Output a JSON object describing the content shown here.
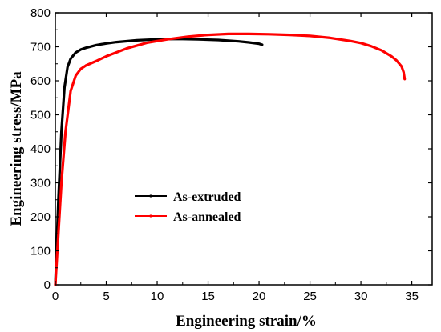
{
  "chart_data": {
    "type": "line",
    "title": "",
    "xlabel": "Engineering strain/%",
    "ylabel": "Engineering stress/MPa",
    "xlim": [
      0,
      37
    ],
    "ylim": [
      0,
      800
    ],
    "xticks": [
      0,
      5,
      10,
      15,
      20,
      25,
      30,
      35
    ],
    "yticks": [
      0,
      100,
      200,
      300,
      400,
      500,
      600,
      700,
      800
    ],
    "grid": false,
    "legend": {
      "position": "center-left"
    },
    "series": [
      {
        "name": "As-extruded",
        "color": "#000000",
        "x": [
          0,
          0.3,
          0.6,
          0.9,
          1.2,
          1.5,
          2.0,
          2.5,
          3.0,
          4.0,
          5.0,
          6.0,
          8.0,
          10.0,
          12.0,
          14.0,
          16.0,
          18.0,
          19.0,
          20.0,
          20.3
        ],
        "y": [
          0,
          250,
          450,
          580,
          640,
          665,
          683,
          692,
          697,
          705,
          710,
          714,
          719,
          722,
          723,
          722,
          720,
          716,
          713,
          709,
          706
        ]
      },
      {
        "name": "As-annealed",
        "color": "#ff0000",
        "x": [
          0,
          0.3,
          0.6,
          1.0,
          1.5,
          2.0,
          2.5,
          3.0,
          4.0,
          5.0,
          7.0,
          9.0,
          11.0,
          13.0,
          15.0,
          17.0,
          19.0,
          21.0,
          23.0,
          25.0,
          27.0,
          29.0,
          30.0,
          31.0,
          32.0,
          33.0,
          33.5,
          34.0,
          34.2,
          34.3
        ],
        "y": [
          0,
          150,
          300,
          450,
          570,
          615,
          635,
          645,
          658,
          672,
          695,
          712,
          722,
          730,
          735,
          738,
          738,
          737,
          735,
          732,
          726,
          717,
          711,
          702,
          690,
          672,
          660,
          642,
          625,
          605
        ]
      }
    ]
  },
  "colors": {
    "axis": "#000000",
    "background": "#ffffff"
  }
}
